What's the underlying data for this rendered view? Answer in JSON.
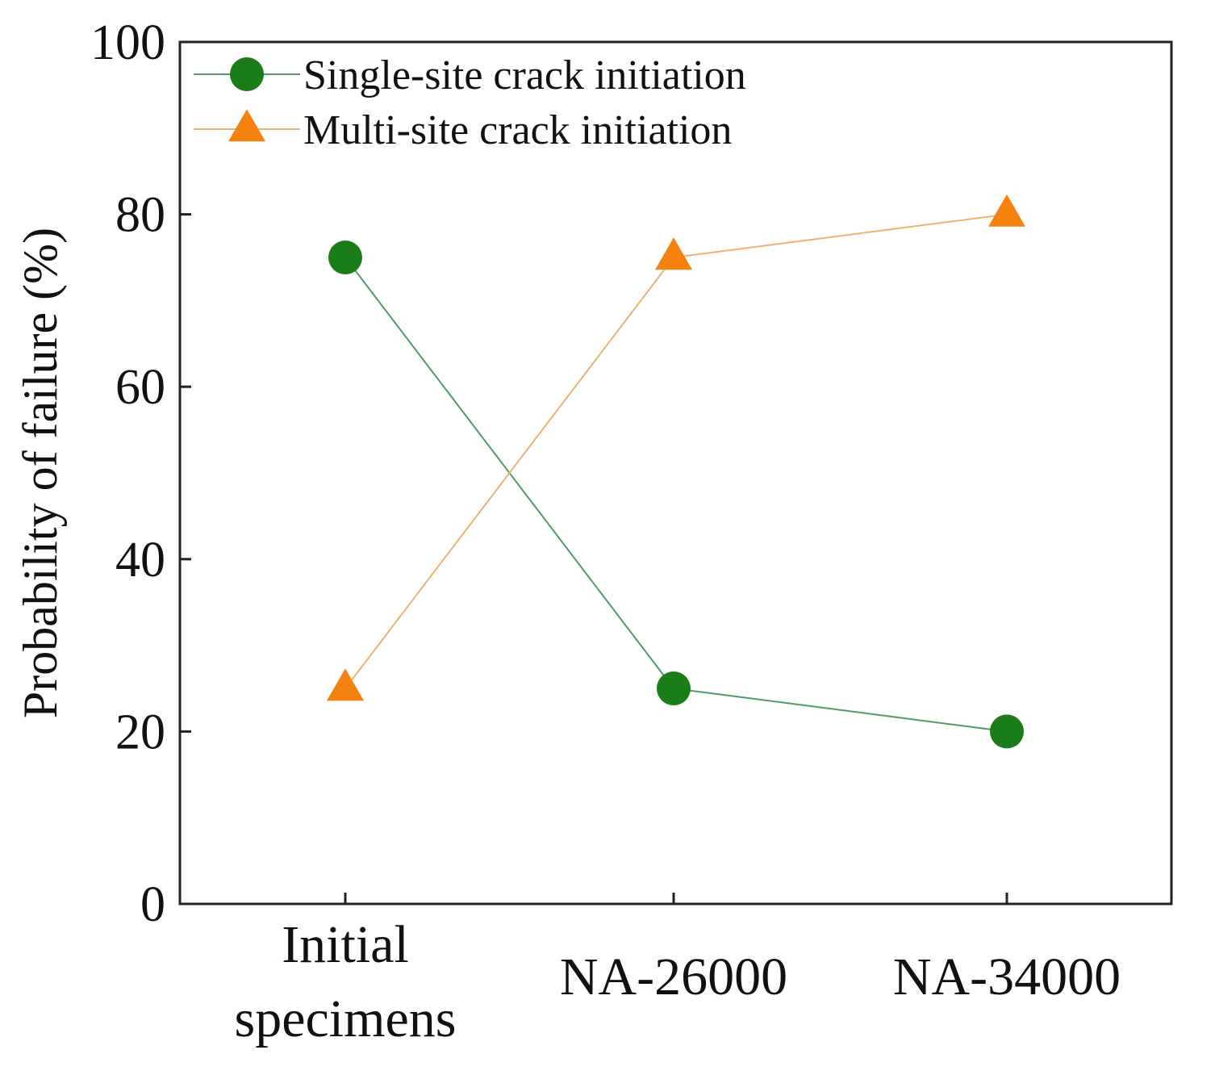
{
  "chart_data": {
    "type": "line",
    "title": "",
    "xlabel": "",
    "ylabel": "Probability of failure (%)",
    "ylim": [
      0,
      100
    ],
    "yticks": [
      0,
      20,
      40,
      60,
      80,
      100
    ],
    "categories": [
      [
        "Initial",
        "specimens"
      ],
      [
        "NA-26000"
      ],
      [
        "NA-34000"
      ]
    ],
    "series": [
      {
        "name": "Single-site crack initiation",
        "marker": "circle",
        "color": "#1a7d1a",
        "line_color": "#4f9a66",
        "values": [
          75,
          25,
          20
        ]
      },
      {
        "name": "Multi-site crack initiation",
        "marker": "triangle",
        "color": "#f5820f",
        "line_color": "#f0b070",
        "values": [
          25,
          75,
          80
        ]
      }
    ],
    "legend_position": "top-left",
    "grid": false
  }
}
